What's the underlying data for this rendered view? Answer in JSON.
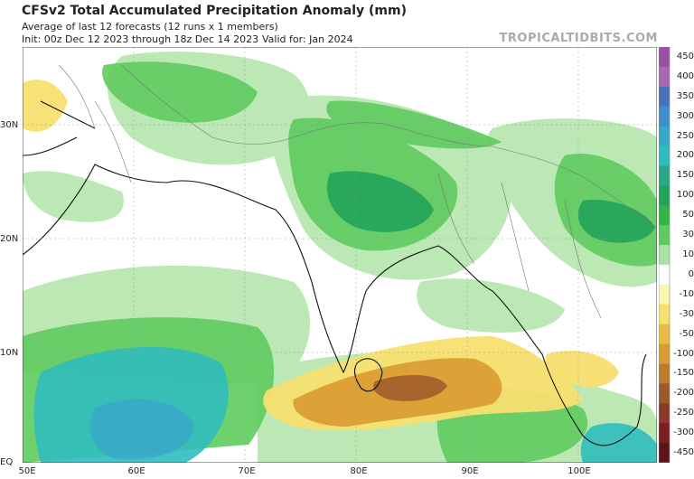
{
  "header": {
    "title": "CFSv2 Total Accumulated Precipitation Anomaly (mm)",
    "subtitle": "Average of last 12 forecasts (12 runs x 1 members)",
    "init": "Init: 00z Dec 12 2023 through 18z Dec 14 2023",
    "valid": "Valid for: Jan 2024",
    "brand": "TROPICALTIDBITS.COM"
  },
  "axes": {
    "lat_labels": [
      "30N",
      "20N",
      "10N",
      "EQ"
    ],
    "lon_labels": [
      "50E",
      "60E",
      "70E",
      "80E",
      "90E",
      "100E"
    ]
  },
  "colorbar": {
    "labels": [
      "450",
      "400",
      "350",
      "300",
      "250",
      "200",
      "150",
      "100",
      "50",
      "30",
      "10",
      "0",
      "-10",
      "-30",
      "-50",
      "-100",
      "-150",
      "-200",
      "-250",
      "-300",
      "-450"
    ],
    "colors": [
      "#9c4fa7",
      "#a66ab3",
      "#4b6fb8",
      "#3f8fd0",
      "#39a8c8",
      "#2fbcbd",
      "#2aa889",
      "#22a35a",
      "#36b24b",
      "#5fcb5e",
      "#a9e3a3",
      "#ffffff",
      "#fcf6b0",
      "#f7e070",
      "#e9bd45",
      "#d99b32",
      "#bd7a2c",
      "#9b5a2a",
      "#8b3a2a",
      "#7a1f22",
      "#5c1518"
    ]
  }
}
